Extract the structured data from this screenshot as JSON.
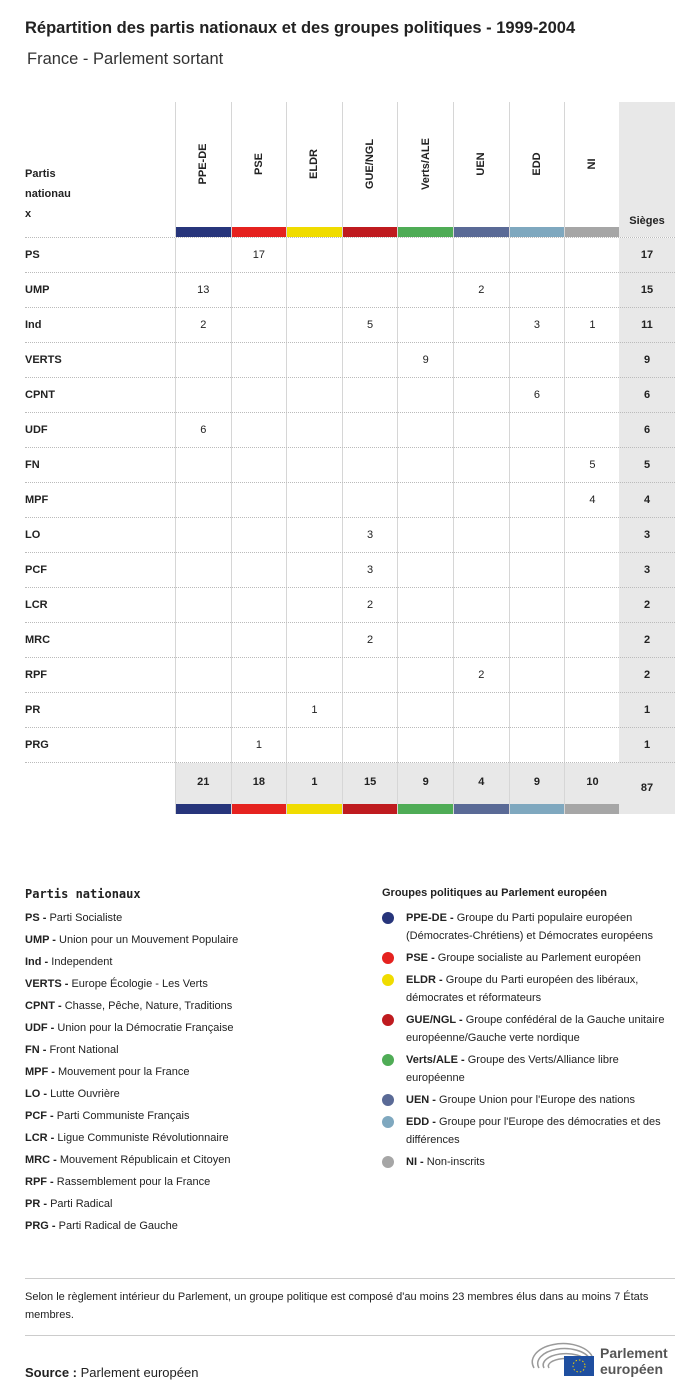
{
  "title": "Répartition des partis nationaux et des groupes politiques - 1999-2004",
  "subtitle": "France - Parlement sortant",
  "table": {
    "party_header": [
      "Partis",
      "nationau",
      "x"
    ],
    "seats_header": "Sièges",
    "groups": [
      {
        "name": "PPE-DE",
        "color": "#27357b"
      },
      {
        "name": "PSE",
        "color": "#e5221f"
      },
      {
        "name": "ELDR",
        "color": "#f0dc00"
      },
      {
        "name": "GUE/NGL",
        "color": "#bf1b1f"
      },
      {
        "name": "Verts/ALE",
        "color": "#4fac56"
      },
      {
        "name": "UEN",
        "color": "#5a6a96"
      },
      {
        "name": "EDD",
        "color": "#7fa8bf"
      },
      {
        "name": "NI",
        "color": "#a6a6a6"
      }
    ],
    "rows": [
      {
        "party": "PS",
        "cells": [
          "",
          "17",
          "",
          "",
          "",
          "",
          "",
          ""
        ],
        "total": "17"
      },
      {
        "party": "UMP",
        "cells": [
          "13",
          "",
          "",
          "",
          "",
          "2",
          "",
          ""
        ],
        "total": "15"
      },
      {
        "party": "Ind",
        "cells": [
          "2",
          "",
          "",
          "5",
          "",
          "",
          "3",
          "1"
        ],
        "total": "11"
      },
      {
        "party": "VERTS",
        "cells": [
          "",
          "",
          "",
          "",
          "9",
          "",
          "",
          ""
        ],
        "total": "9"
      },
      {
        "party": "CPNT",
        "cells": [
          "",
          "",
          "",
          "",
          "",
          "",
          "6",
          ""
        ],
        "total": "6"
      },
      {
        "party": "UDF",
        "cells": [
          "6",
          "",
          "",
          "",
          "",
          "",
          "",
          ""
        ],
        "total": "6"
      },
      {
        "party": "FN",
        "cells": [
          "",
          "",
          "",
          "",
          "",
          "",
          "",
          "5"
        ],
        "total": "5"
      },
      {
        "party": "MPF",
        "cells": [
          "",
          "",
          "",
          "",
          "",
          "",
          "",
          "4"
        ],
        "total": "4"
      },
      {
        "party": "LO",
        "cells": [
          "",
          "",
          "",
          "3",
          "",
          "",
          "",
          ""
        ],
        "total": "3"
      },
      {
        "party": "PCF",
        "cells": [
          "",
          "",
          "",
          "3",
          "",
          "",
          "",
          ""
        ],
        "total": "3"
      },
      {
        "party": "LCR",
        "cells": [
          "",
          "",
          "",
          "2",
          "",
          "",
          "",
          ""
        ],
        "total": "2"
      },
      {
        "party": "MRC",
        "cells": [
          "",
          "",
          "",
          "2",
          "",
          "",
          "",
          ""
        ],
        "total": "2"
      },
      {
        "party": "RPF",
        "cells": [
          "",
          "",
          "",
          "",
          "",
          "2",
          "",
          ""
        ],
        "total": "2"
      },
      {
        "party": "PR",
        "cells": [
          "",
          "",
          "1",
          "",
          "",
          "",
          "",
          ""
        ],
        "total": "1"
      },
      {
        "party": "PRG",
        "cells": [
          "",
          "1",
          "",
          "",
          "",
          "",
          "",
          ""
        ],
        "total": "1"
      }
    ],
    "group_totals": [
      "21",
      "18",
      "1",
      "15",
      "9",
      "4",
      "9",
      "10"
    ],
    "grand_total": "87"
  },
  "legend_parties": {
    "title": "Partis nationaux",
    "items": [
      {
        "abbr": "PS -",
        "name": "Parti Socialiste"
      },
      {
        "abbr": "UMP -",
        "name": "Union pour un Mouvement Populaire"
      },
      {
        "abbr": "Ind -",
        "name": "Independent"
      },
      {
        "abbr": "VERTS -",
        "name": "Europe Écologie - Les Verts"
      },
      {
        "abbr": "CPNT -",
        "name": "Chasse, Pêche, Nature, Traditions"
      },
      {
        "abbr": "UDF -",
        "name": "Union pour la Démocratie Française"
      },
      {
        "abbr": "FN -",
        "name": "Front National"
      },
      {
        "abbr": "MPF -",
        "name": "Mouvement pour la France"
      },
      {
        "abbr": "LO -",
        "name": "Lutte Ouvrière"
      },
      {
        "abbr": "PCF -",
        "name": "Parti Communiste Français"
      },
      {
        "abbr": "LCR -",
        "name": "Ligue Communiste Révolutionnaire"
      },
      {
        "abbr": "MRC -",
        "name": "Mouvement Républicain et Citoyen"
      },
      {
        "abbr": "RPF -",
        "name": "Rassemblement pour la France"
      },
      {
        "abbr": "PR -",
        "name": "Parti Radical"
      },
      {
        "abbr": "PRG -",
        "name": "Parti Radical de Gauche"
      }
    ]
  },
  "legend_groups": {
    "title": "Groupes politiques au Parlement européen",
    "items": [
      {
        "abbr": "PPE-DE -",
        "name": "Groupe du Parti populaire européen (Démocrates-Chrétiens) et Démocrates européens"
      },
      {
        "abbr": "PSE -",
        "name": "Groupe socialiste au Parlement européen"
      },
      {
        "abbr": "ELDR -",
        "name": "Groupe du Parti européen des libéraux, démocrates et réformateurs"
      },
      {
        "abbr": "GUE/NGL -",
        "name": "Groupe confédéral de la Gauche unitaire européenne/Gauche verte nordique"
      },
      {
        "abbr": "Verts/ALE -",
        "name": "Groupe des Verts/Alliance libre européenne"
      },
      {
        "abbr": "UEN -",
        "name": "Groupe Union pour l'Europe des nations"
      },
      {
        "abbr": "EDD -",
        "name": "Groupe pour l'Europe des démocraties et des différences"
      },
      {
        "abbr": "NI -",
        "name": "Non-inscrits"
      }
    ]
  },
  "note": "Selon le règlement intérieur du Parlement, un groupe politique est composé d'au moins 23 membres élus dans au moins 7 États membres.",
  "source_label": "Source :",
  "source_value": "Parlement européen",
  "logo_text": [
    "Parlement",
    "européen"
  ],
  "chart_data": {
    "type": "table",
    "title": "Répartition des partis nationaux et des groupes politiques - 1999-2004",
    "columns": [
      "PPE-DE",
      "PSE",
      "ELDR",
      "GUE/NGL",
      "Verts/ALE",
      "UEN",
      "EDD",
      "NI",
      "Sièges"
    ]
  }
}
